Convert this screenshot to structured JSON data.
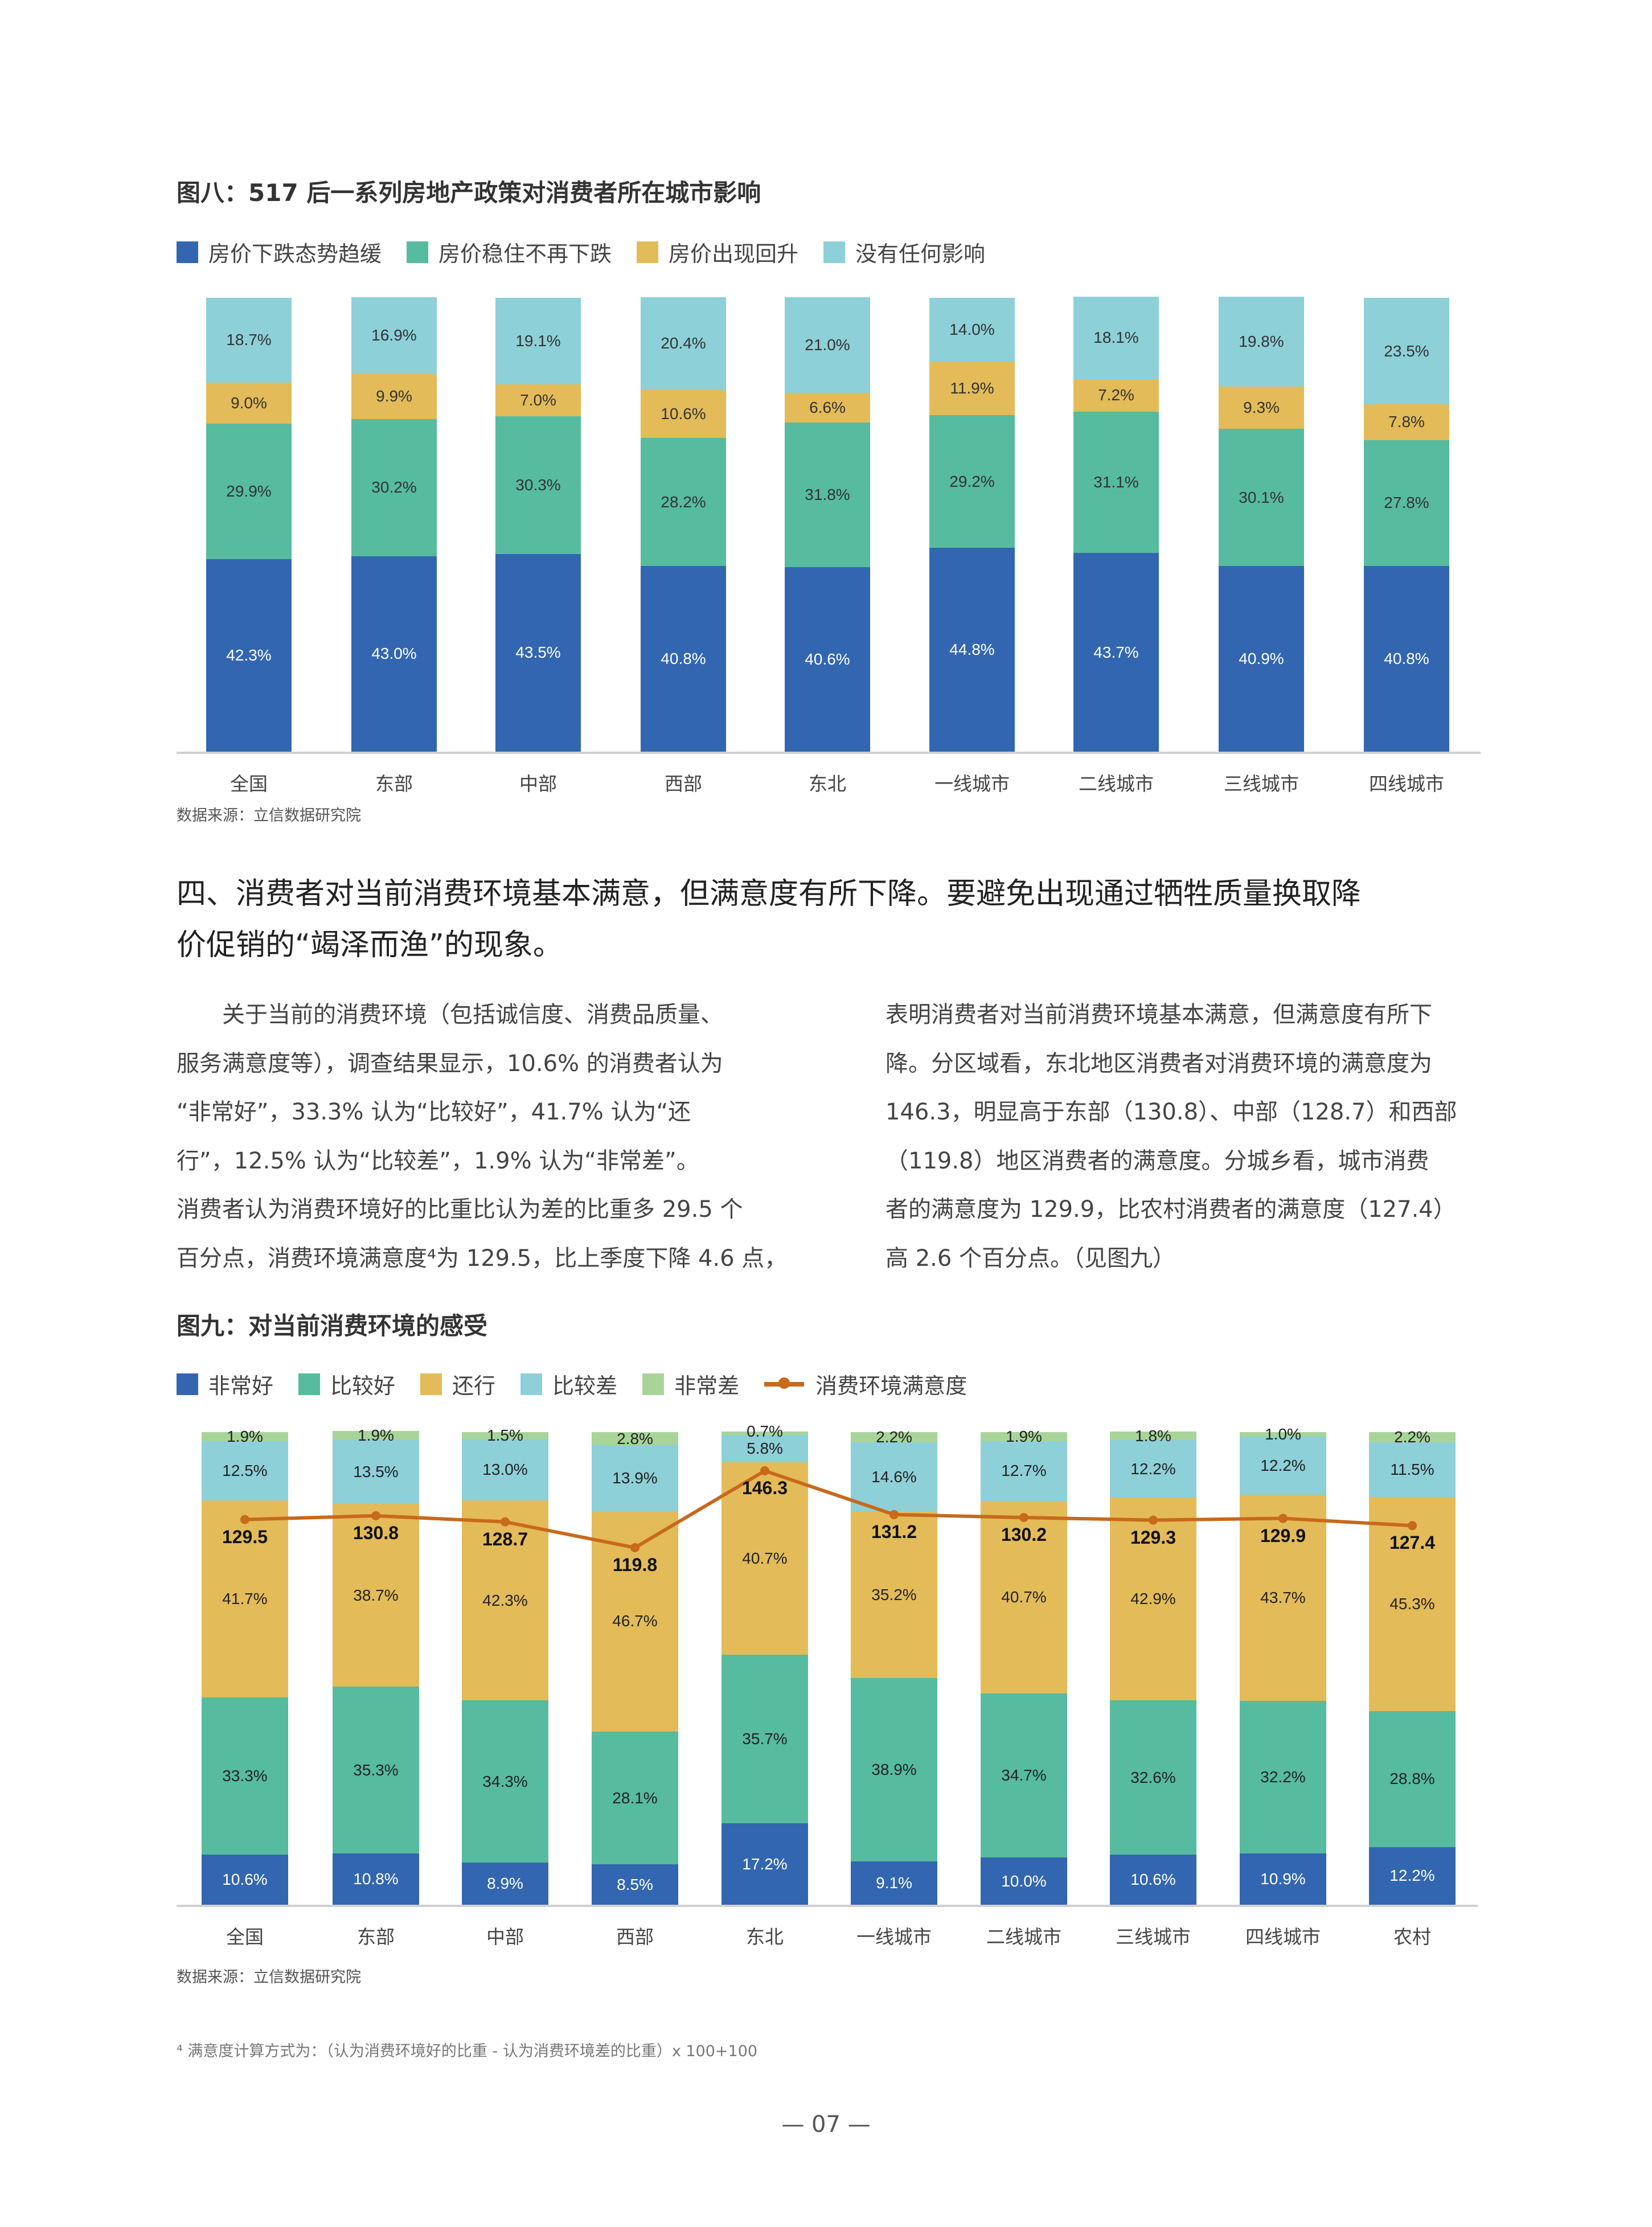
{
  "fig8": {
    "title": "图八：517 后一系列房地产政策对消费者所在城市影响",
    "source": "数据来源：立信数据研究院",
    "chart_data": {
      "type": "bar",
      "stacked": true,
      "categories": [
        "全国",
        "东部",
        "中部",
        "西部",
        "东北",
        "一线城市",
        "二线城市",
        "三线城市",
        "四线城市"
      ],
      "series": [
        {
          "name": "房价下跌态势趋缓",
          "color": "#3366b0",
          "values": [
            42.3,
            43.0,
            43.5,
            40.8,
            40.6,
            44.8,
            43.7,
            40.9,
            40.8
          ]
        },
        {
          "name": "房价稳住不再下跌",
          "color": "#56bb9f",
          "values": [
            29.9,
            30.2,
            30.3,
            28.2,
            31.8,
            29.2,
            31.1,
            30.1,
            27.8
          ]
        },
        {
          "name": "房价出现回升",
          "color": "#e3bb58",
          "values": [
            9.0,
            9.9,
            7.0,
            10.6,
            6.6,
            11.9,
            7.2,
            9.3,
            7.8
          ]
        },
        {
          "name": "没有任何影响",
          "color": "#8dd0d8",
          "values": [
            18.7,
            16.9,
            19.1,
            20.4,
            21.0,
            14.0,
            18.1,
            19.8,
            23.5
          ]
        }
      ],
      "unit": "%",
      "ylim": [
        0,
        100
      ],
      "legend": "top-left",
      "grid": false
    }
  },
  "section": {
    "heading_line1": "四、消费者对当前消费环境基本满意，但满意度有所下降。要避免出现通过牺牲质量换取降",
    "heading_line2": "价促销的“竭泽而渔”的现象。",
    "left_lines": [
      "　　关于当前的消费环境（包括诚信度、消费品质量、",
      "服务满意度等），调查结果显示，10.6% 的消费者认为",
      "“非常好”，33.3% 认为“比较好”，41.7% 认为“还",
      "行”，12.5% 认为“比较差”，1.9% 认为“非常差”。",
      "消费者认为消费环境好的比重比认为差的比重多 29.5 个",
      "百分点，消费环境满意度⁴为 129.5，比上季度下降 4.6 点，"
    ],
    "right_lines": [
      "表明消费者对当前消费环境基本满意，但满意度有所下",
      "降。分区域看，东北地区消费者对消费环境的满意度为",
      "146.3，明显高于东部（130.8）、中部（128.7）和西部",
      "（119.8）地区消费者的满意度。分城乡看，城市消费",
      "者的满意度为 129.9，比农村消费者的满意度（127.4）",
      "高 2.6 个百分点。（见图九）"
    ]
  },
  "fig9": {
    "title": "图九：对当前消费环境的感受",
    "source": "数据来源：立信数据研究院",
    "chart_data": {
      "type": "bar",
      "stacked": true,
      "categories": [
        "全国",
        "东部",
        "中部",
        "西部",
        "东北",
        "一线城市",
        "二线城市",
        "三线城市",
        "四线城市",
        "农村"
      ],
      "series": [
        {
          "name": "非常好",
          "color": "#3366b0",
          "values": [
            10.6,
            10.8,
            8.9,
            8.5,
            17.2,
            9.1,
            10.0,
            10.6,
            10.9,
            12.2
          ]
        },
        {
          "name": "比较好",
          "color": "#56bb9f",
          "values": [
            33.3,
            35.3,
            34.3,
            28.1,
            35.7,
            38.9,
            34.7,
            32.6,
            32.2,
            28.8
          ]
        },
        {
          "name": "还行",
          "color": "#e3bb58",
          "values": [
            41.7,
            38.7,
            42.3,
            46.7,
            40.7,
            35.2,
            40.7,
            42.9,
            43.7,
            45.3
          ]
        },
        {
          "name": "比较差",
          "color": "#8dd0d8",
          "values": [
            12.5,
            13.5,
            13.0,
            13.9,
            5.8,
            14.6,
            12.7,
            12.2,
            12.2,
            11.5
          ]
        },
        {
          "name": "非常差",
          "color": "#a8d49a",
          "values": [
            1.9,
            1.9,
            1.5,
            2.8,
            0.7,
            2.2,
            1.9,
            1.8,
            1.0,
            2.2
          ]
        }
      ],
      "line_series": {
        "name": "消费环境满意度",
        "color": "#c8691c",
        "values": [
          129.5,
          130.8,
          128.7,
          119.8,
          146.3,
          131.2,
          130.2,
          129.3,
          129.9,
          127.4
        ]
      },
      "unit": "%",
      "ylim": [
        0,
        100
      ],
      "legend": "top-left",
      "grid": false
    }
  },
  "footnote": "⁴ 满意度计算方式为：（认为消费环境好的比重 - 认为消费环境差的比重）x 100+100",
  "page_number": "— 07 —"
}
